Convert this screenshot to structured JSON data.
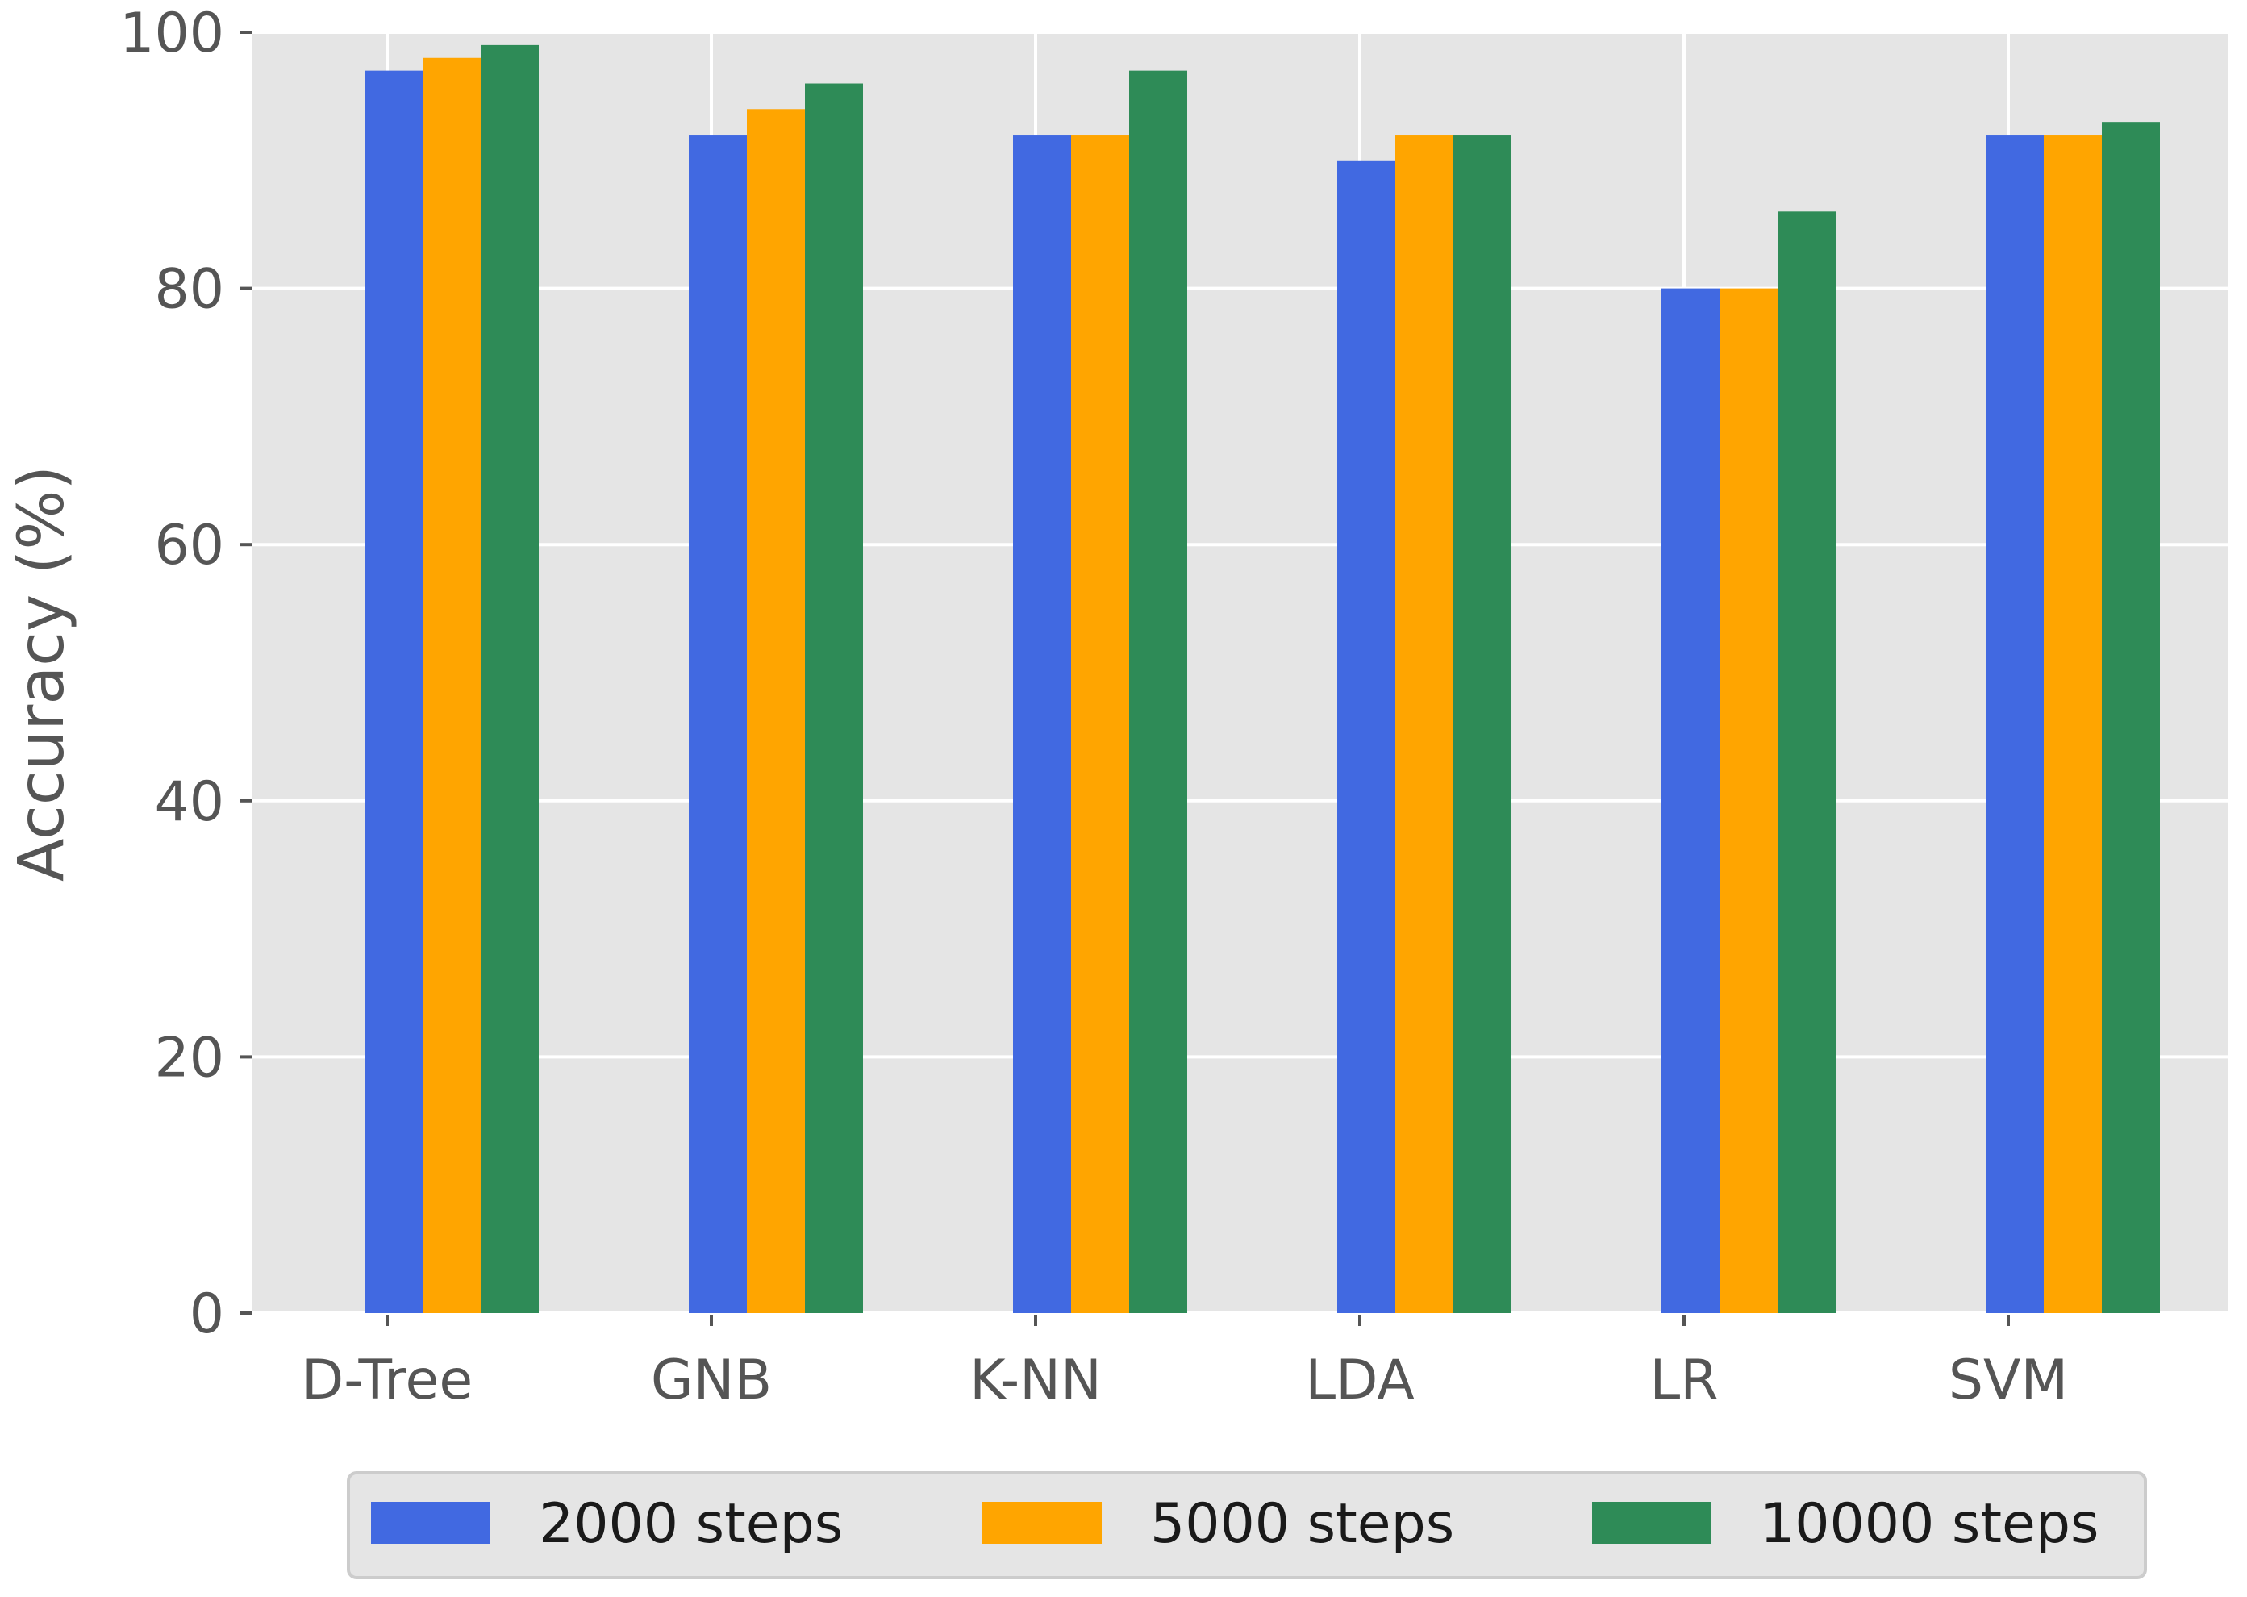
{
  "chart_data": {
    "type": "bar",
    "title": "",
    "xlabel": "",
    "ylabel": "Accuracy (%)",
    "ylim": [
      0,
      100
    ],
    "yticks": [
      0,
      20,
      40,
      60,
      80,
      100
    ],
    "grid": true,
    "legend_position": "bottom",
    "categories": [
      "D-Tree",
      "GNB",
      "K-NN",
      "LDA",
      "LR",
      "SVM"
    ],
    "series": [
      {
        "name": "2000 steps",
        "color": "#4169e1",
        "values": [
          97,
          92,
          92,
          90,
          80,
          92
        ]
      },
      {
        "name": "5000 steps",
        "color": "#ffa500",
        "values": [
          98,
          94,
          92,
          92,
          80,
          92
        ]
      },
      {
        "name": "10000 steps",
        "color": "#2e8b57",
        "values": [
          99,
          96,
          97,
          92,
          86,
          93
        ]
      }
    ],
    "colors": {
      "plot_background": "#e5e5e5",
      "grid": "#ffffff",
      "text": "#555555"
    }
  }
}
